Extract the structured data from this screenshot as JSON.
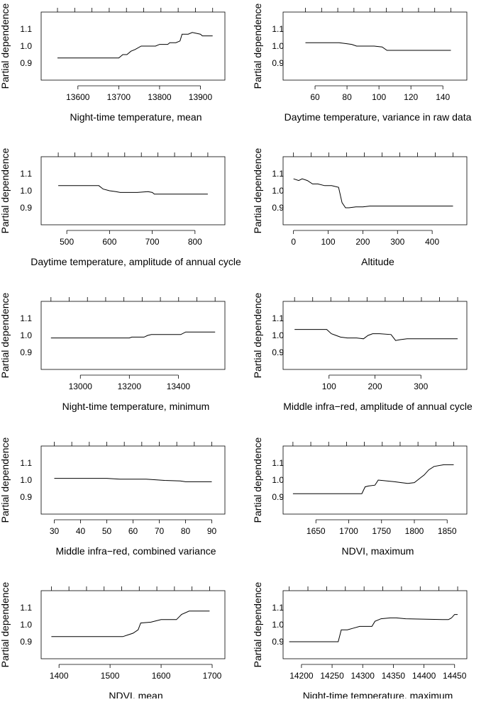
{
  "chart_data": [
    {
      "type": "line",
      "title": "",
      "xlabel": "Night-time temperature, mean",
      "ylabel": "Partial dependence",
      "xlim": [
        13510,
        13960
      ],
      "ylim": [
        0.8,
        1.2
      ],
      "x_ticks": [
        13600,
        13700,
        13800,
        13900
      ],
      "y_ticks": [
        0.9,
        1.0,
        1.1
      ],
      "y_tick_labels": [
        "0.9",
        "1.0",
        "1.1"
      ],
      "series": [
        {
          "name": "partial dependence",
          "x": [
            13550,
            13700,
            13710,
            13720,
            13730,
            13740,
            13755,
            13790,
            13800,
            13820,
            13825,
            13840,
            13850,
            13855,
            13870,
            13880,
            13900,
            13905,
            13930
          ],
          "y": [
            0.93,
            0.93,
            0.95,
            0.95,
            0.97,
            0.98,
            1.0,
            1.0,
            1.01,
            1.01,
            1.02,
            1.02,
            1.03,
            1.07,
            1.07,
            1.08,
            1.07,
            1.06,
            1.06
          ]
        }
      ]
    },
    {
      "type": "line",
      "title": "",
      "xlabel": "Daytime temperature, variance in raw data",
      "ylabel": "Partial dependence",
      "xlim": [
        40,
        155
      ],
      "ylim": [
        0.8,
        1.2
      ],
      "x_ticks": [
        60,
        80,
        100,
        120,
        140
      ],
      "y_ticks": [
        0.9,
        1.0,
        1.1
      ],
      "y_tick_labels": [
        "0.9",
        "1.0",
        "1.1"
      ],
      "series": [
        {
          "name": "partial dependence",
          "x": [
            54,
            75,
            79,
            83,
            86,
            97,
            102,
            105,
            145
          ],
          "y": [
            1.02,
            1.02,
            1.015,
            1.01,
            1.0,
            1.0,
            0.995,
            0.975,
            0.975
          ]
        }
      ]
    },
    {
      "type": "line",
      "title": "",
      "xlabel": "Daytime temperature, amplitude of annual cycle",
      "ylabel": "Partial dependence",
      "xlim": [
        440,
        870
      ],
      "ylim": [
        0.8,
        1.2
      ],
      "x_ticks": [
        500,
        600,
        700,
        800
      ],
      "y_ticks": [
        0.9,
        1.0,
        1.1
      ],
      "y_tick_labels": [
        "0.9",
        "1.0",
        "1.1"
      ],
      "series": [
        {
          "name": "partial dependence",
          "x": [
            480,
            575,
            585,
            600,
            615,
            625,
            665,
            690,
            700,
            705,
            830
          ],
          "y": [
            1.03,
            1.03,
            1.01,
            1.0,
            0.995,
            0.99,
            0.99,
            0.995,
            0.99,
            0.98,
            0.98
          ]
        }
      ]
    },
    {
      "type": "line",
      "title": "",
      "xlabel": "Altitude",
      "ylabel": "Partial dependence",
      "xlim": [
        -30,
        500
      ],
      "ylim": [
        0.8,
        1.2
      ],
      "x_ticks": [
        0,
        100,
        200,
        300,
        400
      ],
      "y_ticks": [
        0.9,
        1.0,
        1.1
      ],
      "y_tick_labels": [
        "0.9",
        "1.0",
        "1.1"
      ],
      "series": [
        {
          "name": "partial dependence",
          "x": [
            0,
            15,
            25,
            40,
            55,
            70,
            90,
            110,
            130,
            140,
            150,
            160,
            180,
            200,
            220,
            460
          ],
          "y": [
            1.07,
            1.06,
            1.07,
            1.06,
            1.04,
            1.04,
            1.03,
            1.03,
            1.02,
            0.93,
            0.9,
            0.9,
            0.905,
            0.905,
            0.91,
            0.91
          ]
        }
      ]
    },
    {
      "type": "line",
      "title": "",
      "xlabel": "Night-time temperature, minimum",
      "ylabel": "Partial dependence",
      "xlim": [
        12840,
        13590
      ],
      "ylim": [
        0.8,
        1.2
      ],
      "x_ticks": [
        13000,
        13200,
        13400
      ],
      "y_ticks": [
        0.9,
        1.0,
        1.1
      ],
      "y_tick_labels": [
        "0.9",
        "1.0",
        "1.1"
      ],
      "series": [
        {
          "name": "partial dependence",
          "x": [
            12880,
            13200,
            13210,
            13260,
            13275,
            13290,
            13410,
            13430,
            13550
          ],
          "y": [
            0.985,
            0.985,
            0.99,
            0.99,
            1.0,
            1.005,
            1.005,
            1.02,
            1.02
          ]
        }
      ]
    },
    {
      "type": "line",
      "title": "",
      "xlabel": "Middle infra−red, amplitude of annual cycle",
      "ylabel": "Partial dependence",
      "xlim": [
        0,
        400
      ],
      "ylim": [
        0.8,
        1.2
      ],
      "x_ticks": [
        100,
        200,
        300
      ],
      "y_ticks": [
        0.9,
        1.0,
        1.1
      ],
      "y_tick_labels": [
        "0.9",
        "1.0",
        "1.1"
      ],
      "series": [
        {
          "name": "partial dependence",
          "x": [
            25,
            95,
            105,
            115,
            125,
            140,
            160,
            175,
            185,
            195,
            210,
            235,
            245,
            255,
            270,
            380
          ],
          "y": [
            1.035,
            1.035,
            1.01,
            1.0,
            0.99,
            0.985,
            0.985,
            0.98,
            1.0,
            1.01,
            1.01,
            1.005,
            0.97,
            0.975,
            0.98,
            0.98
          ]
        }
      ]
    },
    {
      "type": "line",
      "title": "",
      "xlabel": "Middle infra−red, combined variance",
      "ylabel": "Partial dependence",
      "xlim": [
        25,
        95
      ],
      "ylim": [
        0.8,
        1.2
      ],
      "x_ticks": [
        30,
        40,
        50,
        60,
        70,
        80,
        90
      ],
      "y_ticks": [
        0.9,
        1.0,
        1.1
      ],
      "y_tick_labels": [
        "0.9",
        "1.0",
        "1.1"
      ],
      "series": [
        {
          "name": "partial dependence",
          "x": [
            30,
            50,
            55,
            65,
            70,
            72,
            78,
            80,
            90
          ],
          "y": [
            1.01,
            1.01,
            1.005,
            1.005,
            1.0,
            0.998,
            0.995,
            0.99,
            0.99
          ]
        }
      ]
    },
    {
      "type": "line",
      "title": "",
      "xlabel": "NDVI, maximum",
      "ylabel": "Partial dependence",
      "xlim": [
        1600,
        1880
      ],
      "ylim": [
        0.8,
        1.2
      ],
      "x_ticks": [
        1650,
        1700,
        1750,
        1800,
        1850
      ],
      "y_ticks": [
        0.9,
        1.0,
        1.1
      ],
      "y_tick_labels": [
        "0.9",
        "1.0",
        "1.1"
      ],
      "series": [
        {
          "name": "partial dependence",
          "x": [
            1615,
            1720,
            1725,
            1730,
            1740,
            1745,
            1770,
            1780,
            1790,
            1800,
            1805,
            1815,
            1822,
            1830,
            1845,
            1860
          ],
          "y": [
            0.92,
            0.92,
            0.96,
            0.965,
            0.97,
            1.0,
            0.99,
            0.985,
            0.98,
            0.985,
            1.0,
            1.03,
            1.06,
            1.08,
            1.09,
            1.09
          ]
        }
      ]
    },
    {
      "type": "line",
      "title": "",
      "xlabel": "NDVI, mean",
      "ylabel": "Partial dependence",
      "xlim": [
        1365,
        1725
      ],
      "ylim": [
        0.8,
        1.2
      ],
      "x_ticks": [
        1400,
        1500,
        1600,
        1700
      ],
      "y_ticks": [
        0.9,
        1.0,
        1.1
      ],
      "y_tick_labels": [
        "0.9",
        "1.0",
        "1.1"
      ],
      "series": [
        {
          "name": "partial dependence",
          "x": [
            1385,
            1525,
            1535,
            1545,
            1555,
            1560,
            1580,
            1600,
            1630,
            1640,
            1655,
            1695
          ],
          "y": [
            0.93,
            0.93,
            0.94,
            0.95,
            0.97,
            1.01,
            1.015,
            1.03,
            1.03,
            1.06,
            1.08,
            1.08
          ]
        }
      ]
    },
    {
      "type": "line",
      "title": "",
      "xlabel": "Night-time temperature, maximum",
      "ylabel": "Partial dependence",
      "xlim": [
        14170,
        14470
      ],
      "ylim": [
        0.8,
        1.2
      ],
      "x_ticks": [
        14200,
        14250,
        14300,
        14350,
        14400,
        14450
      ],
      "y_ticks": [
        0.9,
        1.0,
        1.1
      ],
      "y_tick_labels": [
        "0.9",
        "1.0",
        "1.1"
      ],
      "series": [
        {
          "name": "partial dependence",
          "x": [
            14180,
            14260,
            14265,
            14275,
            14285,
            14295,
            14315,
            14320,
            14330,
            14345,
            14355,
            14370,
            14430,
            14440,
            14445,
            14450,
            14455
          ],
          "y": [
            0.9,
            0.9,
            0.97,
            0.97,
            0.98,
            0.99,
            0.99,
            1.02,
            1.035,
            1.04,
            1.04,
            1.035,
            1.03,
            1.03,
            1.04,
            1.06,
            1.06
          ]
        }
      ]
    }
  ]
}
